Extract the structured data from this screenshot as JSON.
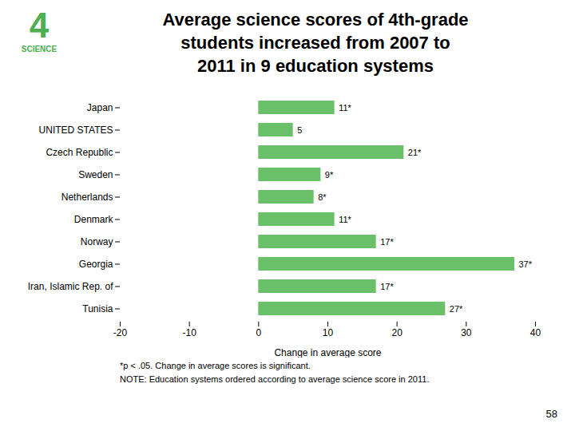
{
  "chart_data": {
    "type": "bar",
    "orientation": "horizontal",
    "title": "Average science scores of 4th-grade\nstudents increased from 2007 to\n2011 in 9 education systems",
    "categories": [
      "Japan",
      "UNITED STATES",
      "Czech Republic",
      "Sweden",
      "Netherlands",
      "Denmark",
      "Norway",
      "Georgia",
      "Iran, Islamic Rep. of",
      "Tunisia"
    ],
    "values": [
      11,
      5,
      21,
      9,
      8,
      11,
      17,
      37,
      17,
      27
    ],
    "value_labels": [
      "11*",
      "5",
      "21*",
      "9*",
      "8*",
      "11*",
      "17*",
      "37*",
      "17*",
      "27*"
    ],
    "data_labels": true,
    "color": "#6abf69",
    "xlabel": "Change in average score",
    "xlim": [
      -20,
      40
    ],
    "xticks": [
      -20,
      -10,
      0,
      10,
      20,
      30,
      40
    ],
    "grid": false,
    "annotations": [
      {
        "text": "4",
        "color": "#4caf50"
      },
      {
        "text": "SCIENCE",
        "color": "#4caf50"
      },
      {
        "text": "*p < .05. Change in average scores is significant."
      },
      {
        "text": "NOTE: Education systems ordered according to average science score in 2011."
      },
      {
        "text": "58"
      }
    ]
  }
}
